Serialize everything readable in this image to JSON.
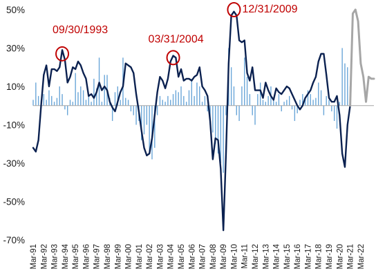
{
  "chart_data": {
    "type": "line",
    "title": "",
    "xlabel": "",
    "ylabel": "",
    "ylim": [
      -70,
      50
    ],
    "y_ticks": [
      50,
      30,
      10,
      -10,
      -30,
      -50,
      -70
    ],
    "y_tick_labels": [
      "50%",
      "30%",
      "10%",
      "-10%",
      "-30%",
      "-50%",
      "-70%"
    ],
    "x_tick_labels": [
      "Mar-91",
      "Mar-92",
      "Mar-93",
      "Mar-94",
      "Mar-95",
      "Mar-96",
      "Mar-97",
      "Mar-98",
      "Mar-99",
      "Mar-00",
      "Mar-01",
      "Mar-02",
      "Mar-03",
      "Mar-04",
      "Mar-05",
      "Mar-06",
      "Mar-07",
      "Mar-08",
      "Mar-09",
      "Mar-10",
      "Mar-11",
      "Mar-12",
      "Mar-13",
      "Mar-14",
      "Mar-15",
      "Mar-16",
      "Mar-17",
      "Mar-18",
      "Mar-19",
      "Mar-20",
      "Mar-21",
      "Mar-22"
    ],
    "colors": {
      "line": "#0b2150",
      "projection": "#a6a6a6",
      "bars": "#6aa6d8",
      "annotation": "#c00000",
      "zero_axis": "#a6a6a6"
    },
    "annotations": [
      {
        "label": "09/30/1993",
        "x": 1993.75,
        "y": 27
      },
      {
        "label": "03/31/2004",
        "x": 2004.25,
        "y": 25
      },
      {
        "label": "12/31/2009",
        "x": 2010.0,
        "y": 50
      }
    ],
    "series": [
      {
        "style": "line",
        "points": [
          [
            1991.0,
            -22
          ],
          [
            1991.25,
            -24
          ],
          [
            1991.5,
            -18
          ],
          [
            1991.75,
            0
          ],
          [
            1992.0,
            16
          ],
          [
            1992.25,
            21
          ],
          [
            1992.5,
            10
          ],
          [
            1992.75,
            19
          ],
          [
            1993.0,
            19
          ],
          [
            1993.25,
            18
          ],
          [
            1993.5,
            20
          ],
          [
            1993.75,
            29
          ],
          [
            1994.0,
            24
          ],
          [
            1994.25,
            12
          ],
          [
            1994.5,
            15
          ],
          [
            1994.75,
            20
          ],
          [
            1995.0,
            19
          ],
          [
            1995.25,
            23
          ],
          [
            1995.5,
            21
          ],
          [
            1995.75,
            17
          ],
          [
            1996.0,
            14
          ],
          [
            1996.25,
            5
          ],
          [
            1996.5,
            6
          ],
          [
            1996.75,
            4
          ],
          [
            1997.0,
            7
          ],
          [
            1997.25,
            12
          ],
          [
            1997.5,
            8
          ],
          [
            1997.75,
            10
          ],
          [
            1998.0,
            8
          ],
          [
            1998.25,
            2
          ],
          [
            1998.5,
            -1
          ],
          [
            1998.75,
            -3
          ],
          [
            1999.0,
            2
          ],
          [
            1999.25,
            7
          ],
          [
            1999.5,
            10
          ],
          [
            1999.75,
            22
          ],
          [
            2000.0,
            21
          ],
          [
            2000.25,
            20
          ],
          [
            2000.5,
            17
          ],
          [
            2000.75,
            6
          ],
          [
            2001.0,
            -3
          ],
          [
            2001.25,
            -13
          ],
          [
            2001.5,
            -22
          ],
          [
            2001.75,
            -26
          ],
          [
            2002.0,
            -25
          ],
          [
            2002.25,
            -17
          ],
          [
            2002.5,
            -5
          ],
          [
            2002.75,
            7
          ],
          [
            2003.0,
            15
          ],
          [
            2003.25,
            13
          ],
          [
            2003.5,
            9
          ],
          [
            2003.75,
            14
          ],
          [
            2004.0,
            23
          ],
          [
            2004.25,
            26
          ],
          [
            2004.5,
            25
          ],
          [
            2004.75,
            15
          ],
          [
            2005.0,
            19
          ],
          [
            2005.25,
            13
          ],
          [
            2005.5,
            14
          ],
          [
            2005.75,
            14
          ],
          [
            2006.0,
            13
          ],
          [
            2006.25,
            15
          ],
          [
            2006.5,
            16
          ],
          [
            2006.75,
            20
          ],
          [
            2007.0,
            10
          ],
          [
            2007.25,
            8
          ],
          [
            2007.5,
            5
          ],
          [
            2007.75,
            -8
          ],
          [
            2008.0,
            -28
          ],
          [
            2008.25,
            -17
          ],
          [
            2008.5,
            -18
          ],
          [
            2008.75,
            -33
          ],
          [
            2009.0,
            -65
          ],
          [
            2009.25,
            -25
          ],
          [
            2009.5,
            22
          ],
          [
            2009.75,
            47
          ],
          [
            2010.0,
            49
          ],
          [
            2010.25,
            47
          ],
          [
            2010.5,
            34
          ],
          [
            2010.75,
            33
          ],
          [
            2011.0,
            34
          ],
          [
            2011.25,
            17
          ],
          [
            2011.5,
            13
          ],
          [
            2011.75,
            20
          ],
          [
            2012.0,
            8
          ],
          [
            2012.25,
            8
          ],
          [
            2012.5,
            8
          ],
          [
            2012.75,
            4
          ],
          [
            2013.0,
            12
          ],
          [
            2013.25,
            8
          ],
          [
            2013.5,
            5
          ],
          [
            2013.75,
            3
          ],
          [
            2014.0,
            9
          ],
          [
            2014.25,
            7
          ],
          [
            2014.5,
            6
          ],
          [
            2014.75,
            8
          ],
          [
            2015.0,
            10
          ],
          [
            2015.25,
            9
          ],
          [
            2015.5,
            6
          ],
          [
            2015.75,
            3
          ],
          [
            2016.0,
            0
          ],
          [
            2016.25,
            -2
          ],
          [
            2016.5,
            0
          ],
          [
            2016.75,
            4
          ],
          [
            2017.0,
            6
          ],
          [
            2017.25,
            8
          ],
          [
            2017.5,
            12
          ],
          [
            2017.75,
            15
          ],
          [
            2018.0,
            23
          ],
          [
            2018.25,
            27
          ],
          [
            2018.5,
            27
          ],
          [
            2018.75,
            16
          ],
          [
            2019.0,
            4
          ],
          [
            2019.25,
            2
          ],
          [
            2019.5,
            2
          ],
          [
            2019.75,
            5
          ],
          [
            2020.0,
            -5
          ],
          [
            2020.25,
            -25
          ],
          [
            2020.5,
            -32
          ],
          [
            2020.75,
            -10
          ],
          [
            2021.0,
            0
          ]
        ]
      },
      {
        "style": "projection",
        "points": [
          [
            2021.0,
            0
          ],
          [
            2021.25,
            48
          ],
          [
            2021.5,
            50
          ],
          [
            2021.75,
            44
          ],
          [
            2022.0,
            22
          ],
          [
            2022.25,
            15
          ],
          [
            2022.5,
            2
          ],
          [
            2022.75,
            15
          ],
          [
            2023.0,
            14
          ],
          [
            2023.25,
            14
          ]
        ]
      },
      {
        "style": "bar",
        "points": [
          [
            1991.0,
            3
          ],
          [
            1991.25,
            12
          ],
          [
            1991.5,
            5
          ],
          [
            1991.75,
            3
          ],
          [
            1992.0,
            6
          ],
          [
            1992.25,
            3
          ],
          [
            1992.5,
            8
          ],
          [
            1992.75,
            5
          ],
          [
            1993.0,
            2
          ],
          [
            1993.25,
            4
          ],
          [
            1993.5,
            10
          ],
          [
            1993.75,
            6
          ],
          [
            1994.0,
            -2
          ],
          [
            1994.25,
            -5
          ],
          [
            1994.5,
            3
          ],
          [
            1994.75,
            2
          ],
          [
            1995.0,
            17
          ],
          [
            1995.25,
            7
          ],
          [
            1995.5,
            10
          ],
          [
            1995.75,
            8
          ],
          [
            1996.0,
            3
          ],
          [
            1996.25,
            5
          ],
          [
            1996.5,
            2
          ],
          [
            1996.75,
            14
          ],
          [
            1997.0,
            9
          ],
          [
            1997.25,
            25
          ],
          [
            1997.5,
            2
          ],
          [
            1997.75,
            16
          ],
          [
            1998.0,
            16
          ],
          [
            1998.25,
            4
          ],
          [
            1998.5,
            -8
          ],
          [
            1998.75,
            7
          ],
          [
            1999.0,
            10
          ],
          [
            1999.25,
            3
          ],
          [
            1999.5,
            25
          ],
          [
            1999.75,
            4
          ],
          [
            2000.0,
            3
          ],
          [
            2000.25,
            -3
          ],
          [
            2000.5,
            -5
          ],
          [
            2000.75,
            -10
          ],
          [
            2001.0,
            -8
          ],
          [
            2001.25,
            -18
          ],
          [
            2001.5,
            -15
          ],
          [
            2001.75,
            -10
          ],
          [
            2002.0,
            -25
          ],
          [
            2002.25,
            -28
          ],
          [
            2002.5,
            -22
          ],
          [
            2002.75,
            -5
          ],
          [
            2003.0,
            5
          ],
          [
            2003.25,
            3
          ],
          [
            2003.5,
            2
          ],
          [
            2003.75,
            5
          ],
          [
            2004.0,
            3
          ],
          [
            2004.25,
            6
          ],
          [
            2004.5,
            8
          ],
          [
            2004.75,
            7
          ],
          [
            2005.0,
            10
          ],
          [
            2005.25,
            5
          ],
          [
            2005.5,
            2
          ],
          [
            2005.75,
            8
          ],
          [
            2006.0,
            14
          ],
          [
            2006.25,
            5
          ],
          [
            2006.5,
            12
          ],
          [
            2006.75,
            10
          ],
          [
            2007.0,
            2
          ],
          [
            2007.25,
            5
          ],
          [
            2007.5,
            -3
          ],
          [
            2007.75,
            -10
          ],
          [
            2008.0,
            -14
          ],
          [
            2008.25,
            -20
          ],
          [
            2008.5,
            -25
          ],
          [
            2008.75,
            -30
          ],
          [
            2009.0,
            -35
          ],
          [
            2009.25,
            -5
          ],
          [
            2009.5,
            30
          ],
          [
            2009.75,
            20
          ],
          [
            2010.0,
            10
          ],
          [
            2010.25,
            -5
          ],
          [
            2010.5,
            -8
          ],
          [
            2010.75,
            10
          ],
          [
            2011.0,
            25
          ],
          [
            2011.25,
            15
          ],
          [
            2011.5,
            6
          ],
          [
            2011.75,
            -5
          ],
          [
            2012.0,
            -10
          ],
          [
            2012.25,
            6
          ],
          [
            2012.5,
            12
          ],
          [
            2012.75,
            3
          ],
          [
            2013.0,
            2
          ],
          [
            2013.25,
            5
          ],
          [
            2013.5,
            10
          ],
          [
            2013.75,
            3
          ],
          [
            2014.0,
            2
          ],
          [
            2014.25,
            6
          ],
          [
            2014.5,
            -3
          ],
          [
            2014.75,
            2
          ],
          [
            2015.0,
            3
          ],
          [
            2015.25,
            5
          ],
          [
            2015.5,
            -2
          ],
          [
            2015.75,
            -8
          ],
          [
            2016.0,
            -4
          ],
          [
            2016.25,
            3
          ],
          [
            2016.5,
            6
          ],
          [
            2016.75,
            4
          ],
          [
            2017.0,
            8
          ],
          [
            2017.25,
            6
          ],
          [
            2017.5,
            3
          ],
          [
            2017.75,
            4
          ],
          [
            2018.0,
            12
          ],
          [
            2018.25,
            8
          ],
          [
            2018.5,
            -5
          ],
          [
            2018.75,
            5
          ],
          [
            2019.0,
            3
          ],
          [
            2019.25,
            -3
          ],
          [
            2019.5,
            -8
          ],
          [
            2019.75,
            -12
          ],
          [
            2020.0,
            2
          ],
          [
            2020.25,
            30
          ],
          [
            2020.5,
            22
          ],
          [
            2020.75,
            20
          ],
          [
            2021.0,
            10
          ]
        ]
      }
    ]
  }
}
